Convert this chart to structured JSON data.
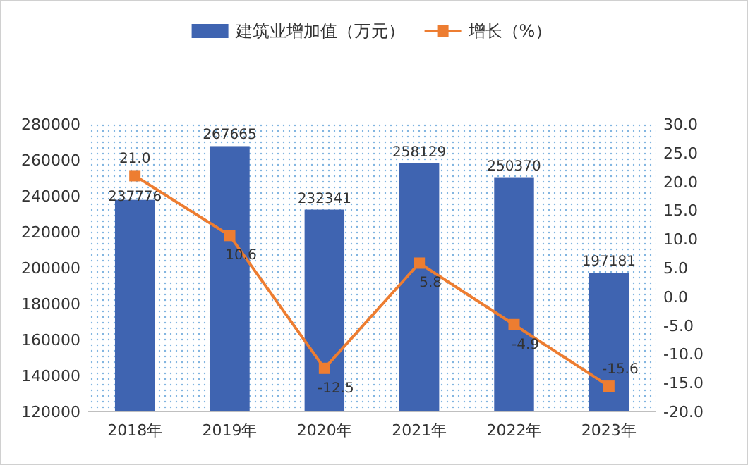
{
  "chart_data": {
    "type": "bar",
    "categories": [
      "2018年",
      "2019年",
      "2020年",
      "2021年",
      "2022年",
      "2023年"
    ],
    "series": [
      {
        "name": "建筑业增加值（万元）",
        "color": "#3f64b1",
        "values": [
          237776,
          267665,
          232341,
          258129,
          250370,
          197181
        ]
      },
      {
        "name": "增长（%）",
        "type": "line",
        "axis": "y2",
        "color": "#ed7d31",
        "marker": "square",
        "values": [
          21.0,
          10.6,
          -12.5,
          5.8,
          -4.9,
          -15.6
        ],
        "value_labels": [
          "21.0",
          "10.6",
          "-12.5",
          "5.8",
          "-4.9",
          "-15.6"
        ]
      }
    ],
    "ylim": [
      120000,
      280000
    ],
    "yticks": [
      120000,
      140000,
      160000,
      180000,
      200000,
      220000,
      240000,
      260000,
      280000
    ],
    "y2lim": [
      -20,
      30
    ],
    "y2ticks": [
      {
        "value": -20,
        "label": "-20.0"
      },
      {
        "value": -15,
        "label": "-15.0"
      },
      {
        "value": -10,
        "label": "-10.0"
      },
      {
        "value": -5,
        "label": "-5.0"
      },
      {
        "value": 0,
        "label": "0.0"
      },
      {
        "value": 5,
        "label": "5.0"
      },
      {
        "value": 10,
        "label": "10.0"
      },
      {
        "value": 15,
        "label": "15.0"
      },
      {
        "value": 20,
        "label": "20.0"
      },
      {
        "value": 25,
        "label": "25.0"
      },
      {
        "value": 30,
        "label": "30.0"
      }
    ],
    "data_labels": true,
    "legend": "top",
    "grid": false
  }
}
